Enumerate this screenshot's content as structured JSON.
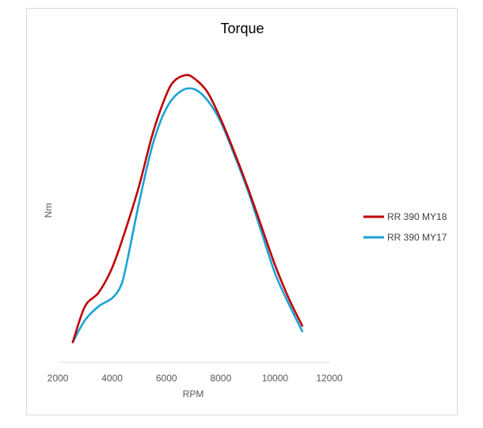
{
  "chart_data": {
    "type": "line",
    "title": "Torque",
    "xlabel": "RPM",
    "ylabel": "Nm",
    "xlim": [
      2000,
      12000
    ],
    "x_ticks": [
      2000,
      4000,
      6000,
      8000,
      10000,
      12000
    ],
    "y_range": [
      0,
      1
    ],
    "grid": false,
    "legend_position": "right",
    "series": [
      {
        "name": "RR 390 MY18",
        "color": "#c00000",
        "points": [
          [
            2550,
            0.03
          ],
          [
            3000,
            0.16
          ],
          [
            3500,
            0.21
          ],
          [
            4000,
            0.3
          ],
          [
            4500,
            0.44
          ],
          [
            5000,
            0.6
          ],
          [
            5500,
            0.79
          ],
          [
            6000,
            0.93
          ],
          [
            6300,
            0.98
          ],
          [
            6700,
            1.0
          ],
          [
            7000,
            0.99
          ],
          [
            7500,
            0.94
          ],
          [
            8000,
            0.84
          ],
          [
            8500,
            0.72
          ],
          [
            9000,
            0.59
          ],
          [
            9500,
            0.45
          ],
          [
            10000,
            0.31
          ],
          [
            10500,
            0.19
          ],
          [
            11000,
            0.09
          ]
        ]
      },
      {
        "name": "RR 390 MY17",
        "color": "#1aa3d8",
        "points": [
          [
            2550,
            0.03
          ],
          [
            3000,
            0.11
          ],
          [
            3500,
            0.16
          ],
          [
            4000,
            0.19
          ],
          [
            4300,
            0.23
          ],
          [
            4500,
            0.3
          ],
          [
            5000,
            0.54
          ],
          [
            5500,
            0.75
          ],
          [
            6000,
            0.88
          ],
          [
            6500,
            0.94
          ],
          [
            7000,
            0.95
          ],
          [
            7500,
            0.91
          ],
          [
            8000,
            0.83
          ],
          [
            8500,
            0.71
          ],
          [
            9000,
            0.58
          ],
          [
            9500,
            0.43
          ],
          [
            10000,
            0.28
          ],
          [
            10500,
            0.17
          ],
          [
            11000,
            0.07
          ]
        ]
      }
    ]
  }
}
